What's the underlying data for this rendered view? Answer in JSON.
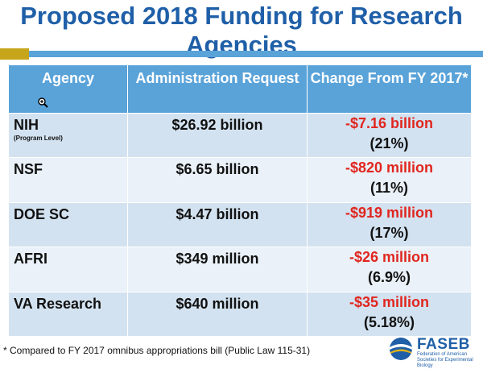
{
  "title": "Proposed 2018 Funding for Research Agencies",
  "columns": [
    "Agency",
    "Administration Request",
    "Change From FY 2017*"
  ],
  "rows": [
    {
      "agency": "NIH",
      "sub": "(Program Level)",
      "request": "$26.92 billion",
      "change": "-$7.16 billion",
      "pct": "(21%)"
    },
    {
      "agency": "NSF",
      "sub": "",
      "request": "$6.65 billion",
      "change": "-$820 million",
      "pct": "(11%)"
    },
    {
      "agency": "DOE SC",
      "sub": "",
      "request": "$4.47 billion",
      "change": "-$919 million",
      "pct": "(17%)"
    },
    {
      "agency": "AFRI",
      "sub": "",
      "request": "$349 million",
      "change": "-$26 million",
      "pct": "(6.9%)"
    },
    {
      "agency": "VA Research",
      "sub": "",
      "request": "$640 million",
      "change": "-$35 million",
      "pct": "(5.18%)"
    }
  ],
  "footnote": "* Compared to FY 2017 omnibus appropriations bill (Public Law 115-31)",
  "logo": {
    "name": "FASEB",
    "subtitle": "Federation of American Societies for Experimental Biology",
    "icon": "faseb-logo-icon"
  },
  "icons": {
    "cursor": "zoom-in-icon"
  },
  "colors": {
    "title": "#1f5fa8",
    "header": "#5aa3d9",
    "negative": "#e0261f",
    "row_odd": "#d3e2f0",
    "row_even": "#eaf1f8",
    "gold": "#c7a51a"
  }
}
